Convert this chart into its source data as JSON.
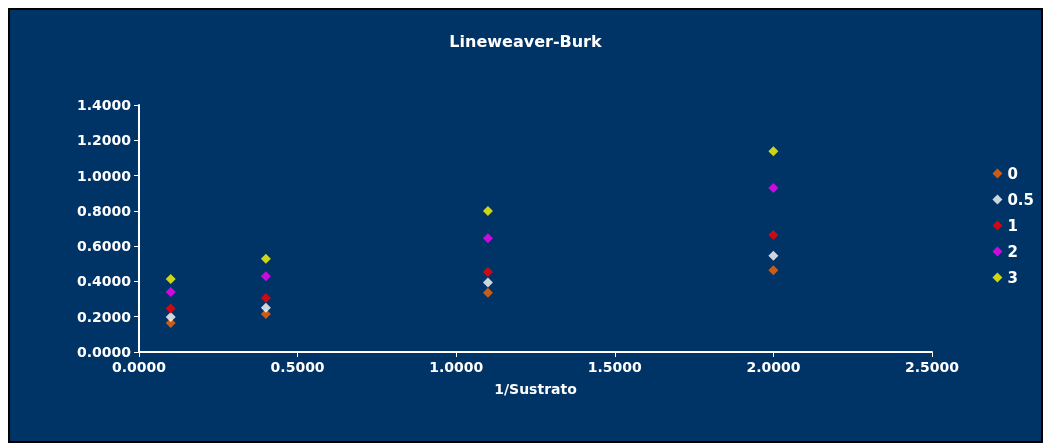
{
  "chart_data": {
    "type": "scatter",
    "title": "Lineweaver-Burk",
    "xlabel": "1/Sustrato",
    "x": [
      0.1,
      0.4,
      1.1,
      2.0
    ],
    "series": [
      {
        "name": "0",
        "color": "#ff6600",
        "values": [
          0.165,
          0.215,
          0.336,
          0.463
        ]
      },
      {
        "name": "0.5",
        "color": "#ffffff",
        "values": [
          0.198,
          0.251,
          0.394,
          0.546
        ]
      },
      {
        "name": "1",
        "color": "#ff0000",
        "values": [
          0.246,
          0.306,
          0.454,
          0.663
        ]
      },
      {
        "name": "2",
        "color": "#ff00ff",
        "values": [
          0.34,
          0.43,
          0.645,
          0.93
        ]
      },
      {
        "name": "3",
        "color": "#ffff00",
        "values": [
          0.414,
          0.528,
          0.799,
          1.138
        ]
      }
    ],
    "xlim": [
      0,
      2.5
    ],
    "xticks": [
      {
        "value": 0,
        "label": "0.0000"
      },
      {
        "value": 0.5,
        "label": "0.5000"
      },
      {
        "value": 1,
        "label": "1.0000"
      },
      {
        "value": 1.5,
        "label": "1.5000"
      },
      {
        "value": 2,
        "label": "2.0000"
      },
      {
        "value": 2.5,
        "label": "2.5000"
      }
    ],
    "ylim": [
      0,
      1.4
    ],
    "yticks": [
      {
        "value": 0,
        "label": "0.0000"
      },
      {
        "value": 0.2,
        "label": "0.2000"
      },
      {
        "value": 0.4,
        "label": "0.4000"
      },
      {
        "value": 0.6,
        "label": "0.6000"
      },
      {
        "value": 0.8,
        "label": "0.8000"
      },
      {
        "value": 1,
        "label": "1.0000"
      },
      {
        "value": 1.2,
        "label": "1.2000"
      },
      {
        "value": 1.4,
        "label": "1.4000"
      }
    ],
    "marker": "diamond",
    "legend": "right",
    "grid": false
  }
}
